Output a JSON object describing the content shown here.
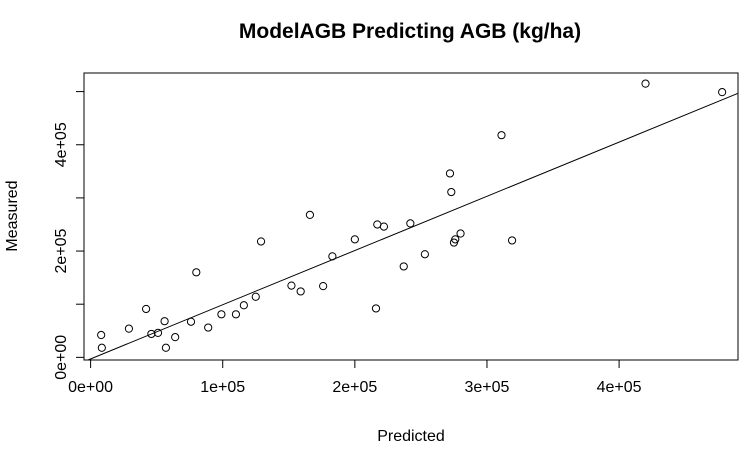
{
  "chart_data": {
    "type": "scatter",
    "title": "ModelAGB Predicting AGB (kg/ha)",
    "xlabel": "Predicted",
    "ylabel": "Measured",
    "xlim": [
      -5000,
      490000
    ],
    "ylim": [
      -5000,
      535000
    ],
    "x_ticks": [
      0,
      100000,
      200000,
      300000,
      400000
    ],
    "x_tick_labels": [
      "0e+00",
      "1e+05",
      "2e+05",
      "3e+05",
      "4e+05"
    ],
    "y_ticks": [
      0,
      200000,
      400000
    ],
    "y_tick_labels": [
      "0e+00",
      "2e+05",
      "4e+05"
    ],
    "grid": false,
    "fit_line": {
      "intercept": -3000,
      "slope": 1.02
    },
    "points": [
      {
        "x": 8000,
        "y": 42000
      },
      {
        "x": 8500,
        "y": 18000
      },
      {
        "x": 29000,
        "y": 54000
      },
      {
        "x": 42000,
        "y": 91000
      },
      {
        "x": 46000,
        "y": 44000
      },
      {
        "x": 51000,
        "y": 46000
      },
      {
        "x": 56000,
        "y": 68000
      },
      {
        "x": 57000,
        "y": 18000
      },
      {
        "x": 64000,
        "y": 38000
      },
      {
        "x": 76000,
        "y": 67000
      },
      {
        "x": 80000,
        "y": 160000
      },
      {
        "x": 89000,
        "y": 56000
      },
      {
        "x": 99000,
        "y": 81000
      },
      {
        "x": 110000,
        "y": 81000
      },
      {
        "x": 116000,
        "y": 98000
      },
      {
        "x": 125000,
        "y": 114000
      },
      {
        "x": 129000,
        "y": 218000
      },
      {
        "x": 152000,
        "y": 135000
      },
      {
        "x": 159000,
        "y": 124000
      },
      {
        "x": 166000,
        "y": 268000
      },
      {
        "x": 176000,
        "y": 134000
      },
      {
        "x": 183000,
        "y": 190000
      },
      {
        "x": 200000,
        "y": 222000
      },
      {
        "x": 216000,
        "y": 92000
      },
      {
        "x": 217000,
        "y": 250000
      },
      {
        "x": 222000,
        "y": 246000
      },
      {
        "x": 237000,
        "y": 171000
      },
      {
        "x": 242000,
        "y": 252000
      },
      {
        "x": 253000,
        "y": 194000
      },
      {
        "x": 272000,
        "y": 346000
      },
      {
        "x": 273000,
        "y": 311000
      },
      {
        "x": 275000,
        "y": 216000
      },
      {
        "x": 276000,
        "y": 222000
      },
      {
        "x": 280000,
        "y": 233000
      },
      {
        "x": 311000,
        "y": 418000
      },
      {
        "x": 319000,
        "y": 220000
      },
      {
        "x": 420000,
        "y": 515000
      },
      {
        "x": 478000,
        "y": 499000
      }
    ]
  }
}
